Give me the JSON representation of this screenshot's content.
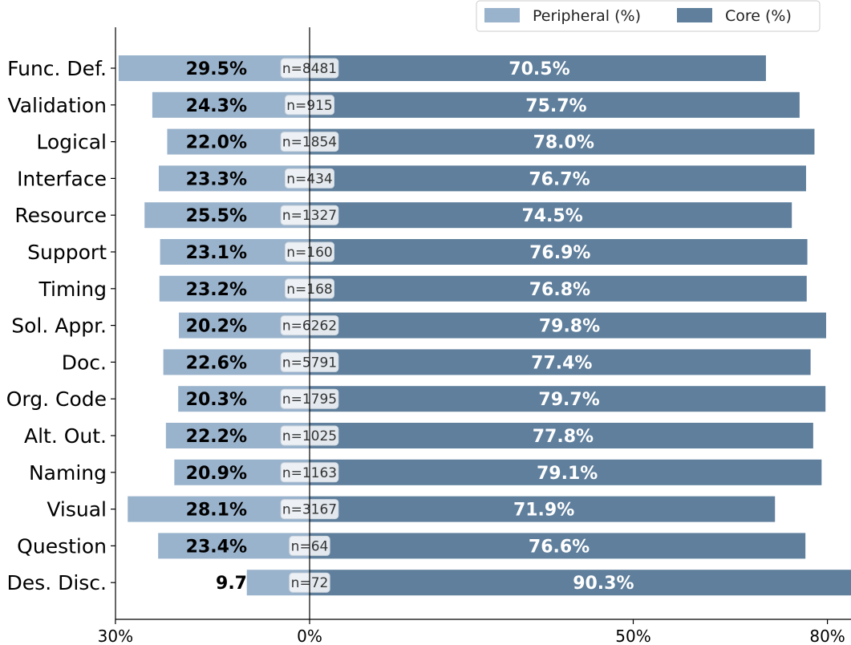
{
  "chart_data": {
    "type": "bar",
    "orientation": "horizontal-diverging",
    "categories": [
      "Func. Def.",
      "Validation",
      "Logical",
      "Interface",
      "Resource",
      "Support",
      "Timing",
      "Sol. Appr.",
      "Doc.",
      "Org. Code",
      "Alt. Out.",
      "Naming",
      "Visual",
      "Question",
      "Des. Disc."
    ],
    "series": [
      {
        "name": "Peripheral (%)",
        "color": "#9ab3cc",
        "values": [
          29.5,
          24.3,
          22.0,
          23.3,
          25.5,
          23.1,
          23.2,
          20.2,
          22.6,
          20.3,
          22.2,
          20.9,
          28.1,
          23.4,
          9.7
        ],
        "labels": [
          "29.5%",
          "24.3%",
          "22.0%",
          "23.3%",
          "25.5%",
          "23.1%",
          "23.2%",
          "20.2%",
          "22.6%",
          "20.3%",
          "22.2%",
          "20.9%",
          "28.1%",
          "23.4%",
          "9.7"
        ]
      },
      {
        "name": "Core (%)",
        "color": "#5f7f9c",
        "values": [
          70.5,
          75.7,
          78.0,
          76.7,
          74.5,
          76.9,
          76.8,
          79.8,
          77.4,
          79.7,
          77.8,
          79.1,
          71.9,
          76.6,
          90.3
        ],
        "labels": [
          "70.5%",
          "75.7%",
          "78.0%",
          "76.7%",
          "74.5%",
          "76.9%",
          "76.8%",
          "79.8%",
          "77.4%",
          "79.7%",
          "77.8%",
          "79.1%",
          "71.9%",
          "76.6%",
          "90.3%"
        ]
      }
    ],
    "n_labels": [
      "n=8481",
      "n=915",
      "n=1854",
      "n=434",
      "n=1327",
      "n=160",
      "n=168",
      "n=6262",
      "n=5791",
      "n=1795",
      "n=1025",
      "n=1163",
      "n=3167",
      "n=64",
      "n=72"
    ],
    "x_ticks": [
      {
        "value": -30,
        "label": "30%"
      },
      {
        "value": 0,
        "label": "0%"
      },
      {
        "value": 50,
        "label": "50%"
      },
      {
        "value": 80,
        "label": "80%"
      }
    ],
    "xlim": [
      -30,
      80
    ],
    "legend_position": "top-right",
    "grid": false
  }
}
